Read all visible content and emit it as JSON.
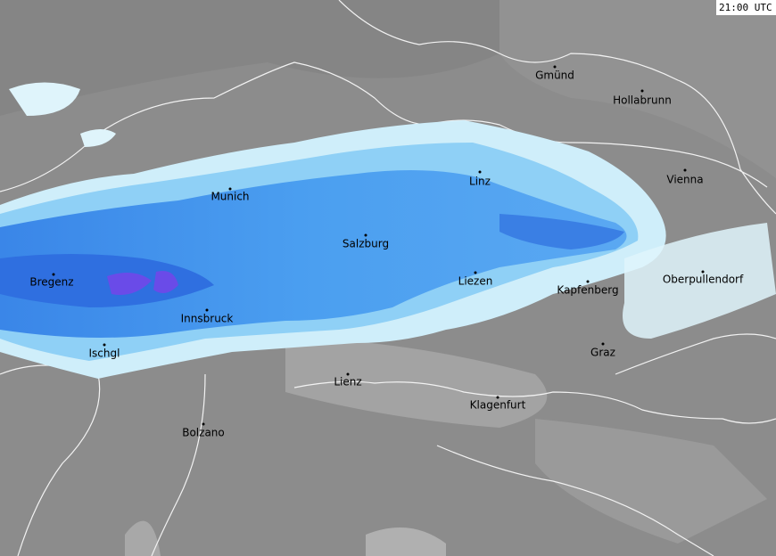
{
  "timestamp": "21:00 UTC",
  "cities": [
    "Gmünd",
    "Hollabrunn",
    "Linz",
    "Vienna",
    "Munich",
    "Salzburg",
    "Bregenz",
    "Liezen",
    "Kapfenberg",
    "Oberpullendorf",
    "Innsbruck",
    "Ischgl",
    "Graz",
    "Lienz",
    "Klagenfurt",
    "Bolzano"
  ]
}
